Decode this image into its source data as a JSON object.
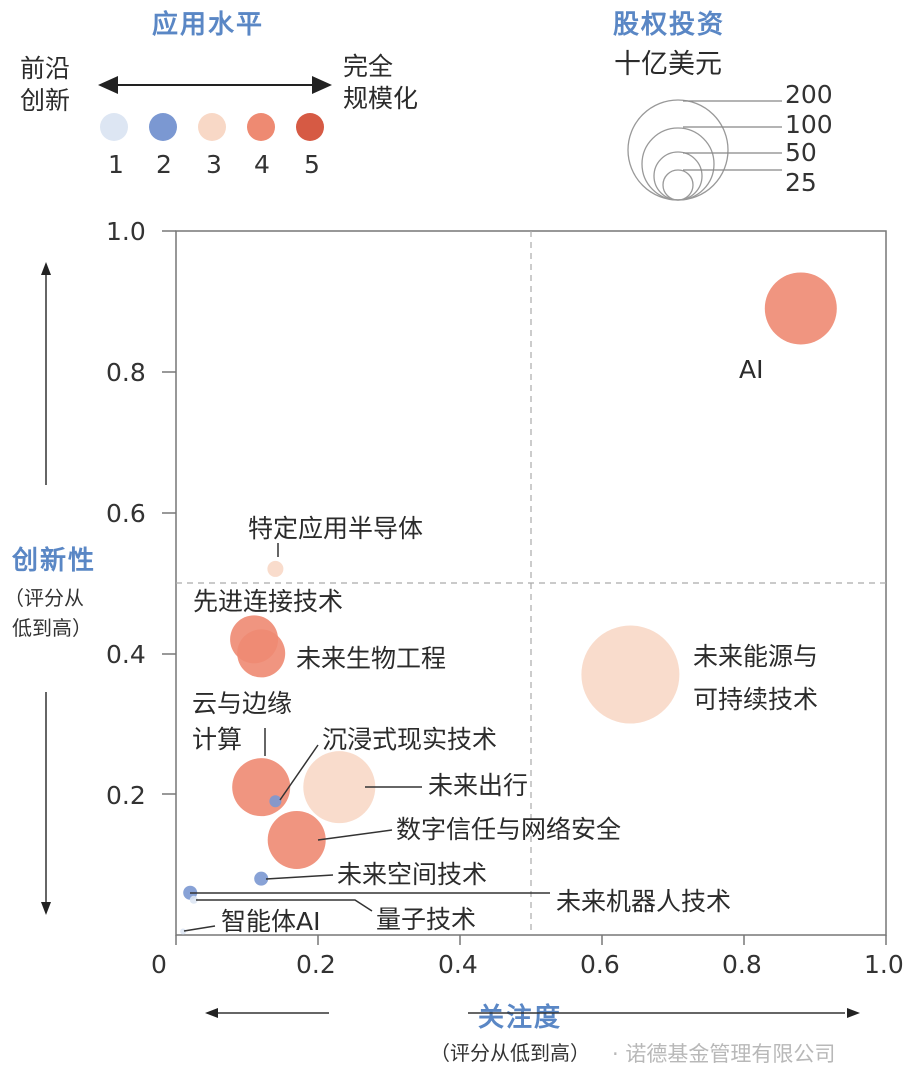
{
  "legend_color": {
    "title": "应用水平",
    "left_label_line1": "前沿",
    "left_label_line2": "创新",
    "right_label_line1": "完全",
    "right_label_line2": "规模化",
    "levels": [
      {
        "label": "1",
        "color": "#dde6f3"
      },
      {
        "label": "2",
        "color": "#7b98d2"
      },
      {
        "label": "3",
        "color": "#f8d8c6"
      },
      {
        "label": "4",
        "color": "#ee8a72"
      },
      {
        "label": "5",
        "color": "#d65a44"
      }
    ]
  },
  "legend_size": {
    "title": "股权投资",
    "unit": "十亿美元",
    "sizes": [
      {
        "label": "200",
        "r": 50
      },
      {
        "label": "100",
        "r": 36
      },
      {
        "label": "50",
        "r": 24
      },
      {
        "label": "25",
        "r": 15
      }
    ]
  },
  "y_axis": {
    "title": "创新性",
    "subtitle_line1": "（评分从",
    "subtitle_line2": "低到高）",
    "ticks": [
      "1.0",
      "0.8",
      "0.6",
      "0.4",
      "0.2"
    ]
  },
  "x_axis": {
    "title": "关注度",
    "subtitle": "（评分从低到高）",
    "ticks": [
      "0",
      "0.2",
      "0.4",
      "0.6",
      "0.8",
      "1.0"
    ]
  },
  "watermark": "· 诺德基金管理有限公司",
  "chart_data": {
    "type": "scatter",
    "title": "",
    "xlabel": "关注度（评分从低到高）",
    "ylabel": "创新性（评分从低到高）",
    "xlim": [
      0,
      1.0
    ],
    "ylim": [
      0,
      1.0
    ],
    "grid": false,
    "reference_lines": {
      "x": 0.5,
      "y": 0.5,
      "style": "dashed"
    },
    "size_legend": {
      "title": "股权投资（十亿美元）",
      "values": [
        200,
        100,
        50,
        25
      ]
    },
    "color_legend": {
      "title": "应用水平",
      "levels": [
        1,
        2,
        3,
        4,
        5
      ],
      "low_label": "前沿创新",
      "high_label": "完全规模化"
    },
    "series": [
      {
        "name": "AI",
        "x": 0.88,
        "y": 0.89,
        "level": 4,
        "investment": 120,
        "r": 36
      },
      {
        "name": "特定应用半导体",
        "x": 0.14,
        "y": 0.52,
        "level": 3,
        "investment": 6,
        "r": 8
      },
      {
        "name": "先进连接技术",
        "x": 0.11,
        "y": 0.42,
        "level": 4,
        "investment": 55,
        "r": 24
      },
      {
        "name": "未来生物工程",
        "x": 0.12,
        "y": 0.4,
        "level": 4,
        "investment": 55,
        "r": 24
      },
      {
        "name": "未来能源与可持续技术",
        "x": 0.64,
        "y": 0.37,
        "level": 3,
        "investment": 220,
        "r": 49
      },
      {
        "name": "云与边缘计算",
        "x": 0.12,
        "y": 0.21,
        "level": 4,
        "investment": 80,
        "r": 29
      },
      {
        "name": "沉浸式现实技术",
        "x": 0.14,
        "y": 0.19,
        "level": 2,
        "investment": 4,
        "r": 6
      },
      {
        "name": "未来出行",
        "x": 0.23,
        "y": 0.21,
        "level": 3,
        "investment": 120,
        "r": 36
      },
      {
        "name": "数字信任与网络安全",
        "x": 0.17,
        "y": 0.135,
        "level": 4,
        "investment": 80,
        "r": 29
      },
      {
        "name": "未来空间技术",
        "x": 0.12,
        "y": 0.08,
        "level": 2,
        "investment": 5,
        "r": 7
      },
      {
        "name": "未来机器人技术",
        "x": 0.02,
        "y": 0.06,
        "level": 2,
        "investment": 5,
        "r": 7
      },
      {
        "name": "量子技术",
        "x": 0.025,
        "y": 0.05,
        "level": 1,
        "investment": 2,
        "r": 4
      },
      {
        "name": "智能体AI",
        "x": 0.01,
        "y": 0.005,
        "level": 1,
        "investment": 1,
        "r": 3
      }
    ]
  }
}
